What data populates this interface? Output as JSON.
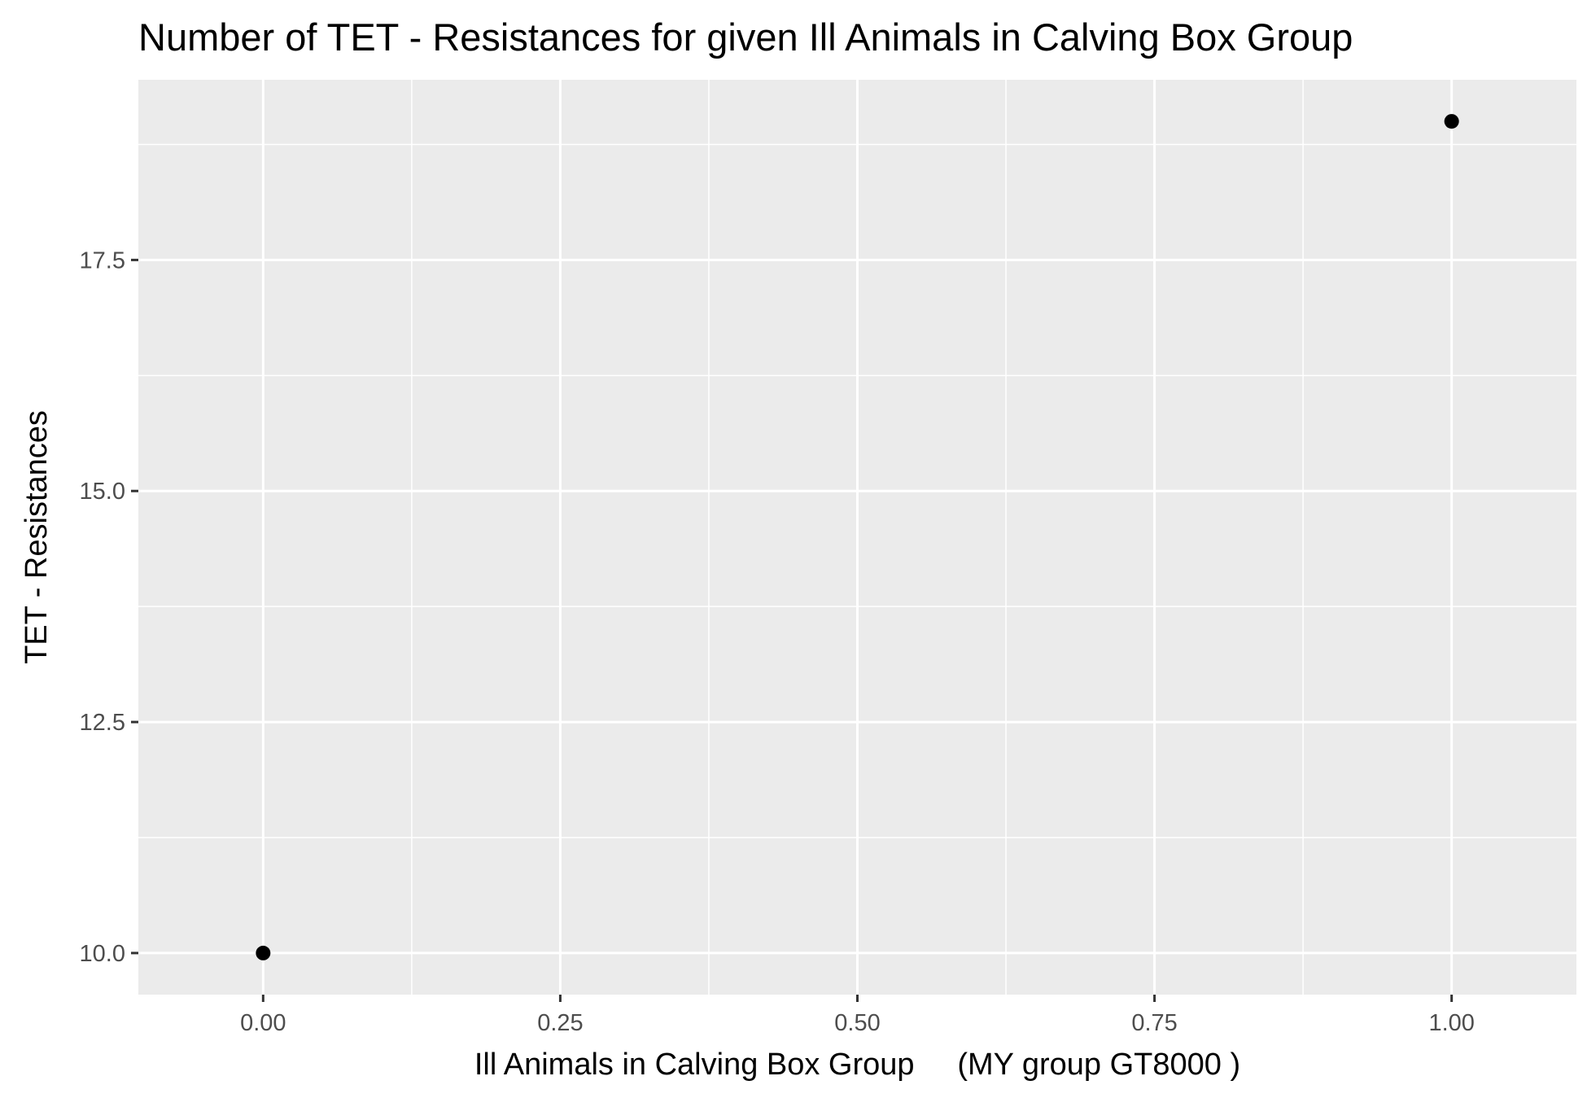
{
  "chart_data": {
    "type": "scatter",
    "title": "Number of TET - Resistances for given Ill Animals in Calving Box Group",
    "xlabel": "Ill Animals in Calving Box Group     (MY group GT8000 )",
    "ylabel": "TET - Resistances",
    "xlim": [
      -0.105,
      1.105
    ],
    "ylim": [
      9.55,
      19.45
    ],
    "x_ticks": [
      0.0,
      0.25,
      0.5,
      0.75,
      1.0
    ],
    "x_tick_labels": [
      "0.00",
      "0.25",
      "0.50",
      "0.75",
      "1.00"
    ],
    "y_ticks": [
      10.0,
      12.5,
      15.0,
      17.5
    ],
    "y_tick_labels": [
      "10.0",
      "12.5",
      "15.0",
      "17.5"
    ],
    "points": [
      {
        "x": 0,
        "y": 10
      },
      {
        "x": 1,
        "y": 19
      }
    ],
    "grid": true,
    "legend": "none",
    "colors": {
      "panel_background": "#ebebeb",
      "grid_line": "#ffffff",
      "point": "#000000",
      "tick": "#333333"
    }
  }
}
